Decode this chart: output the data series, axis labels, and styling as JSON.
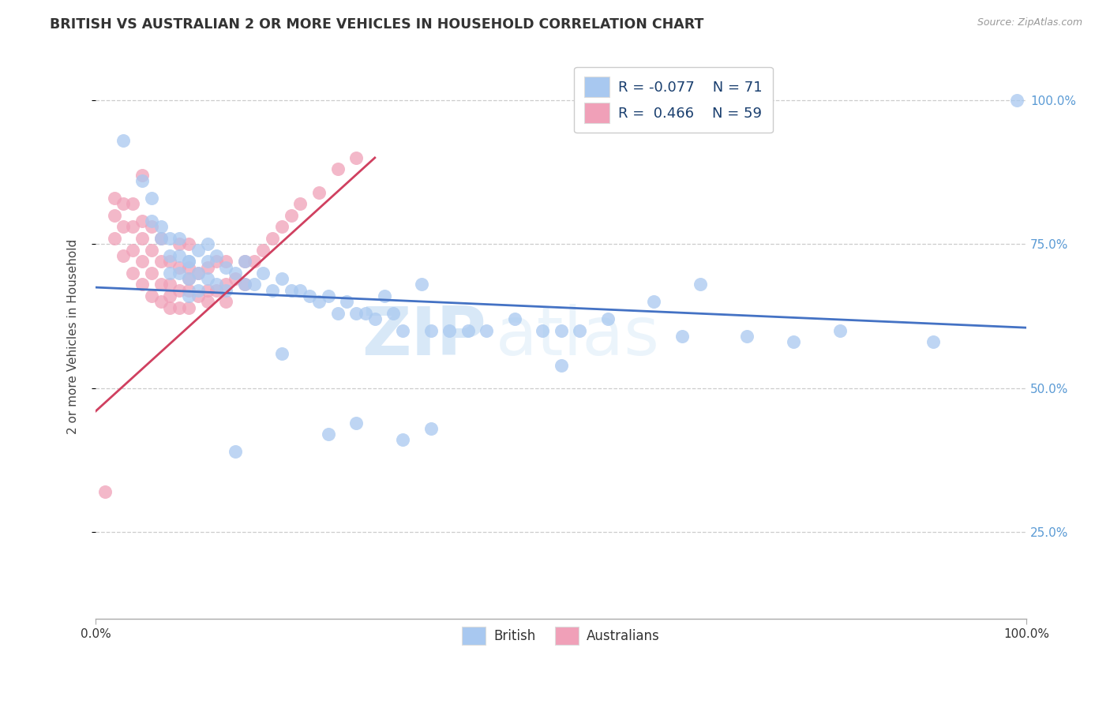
{
  "title": "BRITISH VS AUSTRALIAN 2 OR MORE VEHICLES IN HOUSEHOLD CORRELATION CHART",
  "source": "Source: ZipAtlas.com",
  "ylabel": "2 or more Vehicles in Household",
  "yticks": [
    "25.0%",
    "50.0%",
    "75.0%",
    "100.0%"
  ],
  "ytick_vals": [
    0.25,
    0.5,
    0.75,
    1.0
  ],
  "xlim": [
    0.0,
    1.0
  ],
  "ylim": [
    0.1,
    1.08
  ],
  "blue_R": -0.077,
  "blue_N": 71,
  "pink_R": 0.466,
  "pink_N": 59,
  "blue_color": "#A8C8F0",
  "pink_color": "#F0A0B8",
  "blue_line_color": "#4472C4",
  "pink_line_color": "#D04060",
  "watermark_zip": "ZIP",
  "watermark_atlas": "atlas",
  "blue_scatter_x": [
    0.03,
    0.05,
    0.06,
    0.06,
    0.07,
    0.07,
    0.08,
    0.08,
    0.08,
    0.09,
    0.09,
    0.09,
    0.1,
    0.1,
    0.1,
    0.1,
    0.11,
    0.11,
    0.11,
    0.12,
    0.12,
    0.12,
    0.13,
    0.13,
    0.14,
    0.14,
    0.15,
    0.16,
    0.16,
    0.17,
    0.18,
    0.19,
    0.2,
    0.21,
    0.22,
    0.23,
    0.24,
    0.25,
    0.26,
    0.27,
    0.28,
    0.29,
    0.3,
    0.31,
    0.32,
    0.33,
    0.35,
    0.36,
    0.38,
    0.4,
    0.42,
    0.45,
    0.48,
    0.5,
    0.52,
    0.55,
    0.6,
    0.63,
    0.65,
    0.7,
    0.75,
    0.8,
    0.9,
    0.5,
    0.36,
    0.28,
    0.2,
    0.15,
    0.25,
    0.33,
    0.99
  ],
  "blue_scatter_y": [
    0.93,
    0.86,
    0.83,
    0.79,
    0.78,
    0.76,
    0.76,
    0.73,
    0.7,
    0.76,
    0.73,
    0.7,
    0.72,
    0.69,
    0.66,
    0.72,
    0.7,
    0.67,
    0.74,
    0.69,
    0.72,
    0.75,
    0.68,
    0.73,
    0.67,
    0.71,
    0.7,
    0.68,
    0.72,
    0.68,
    0.7,
    0.67,
    0.69,
    0.67,
    0.67,
    0.66,
    0.65,
    0.66,
    0.63,
    0.65,
    0.63,
    0.63,
    0.62,
    0.66,
    0.63,
    0.6,
    0.68,
    0.6,
    0.6,
    0.6,
    0.6,
    0.62,
    0.6,
    0.6,
    0.6,
    0.62,
    0.65,
    0.59,
    0.68,
    0.59,
    0.58,
    0.6,
    0.58,
    0.54,
    0.43,
    0.44,
    0.56,
    0.39,
    0.42,
    0.41,
    1.0
  ],
  "pink_scatter_x": [
    0.01,
    0.02,
    0.02,
    0.02,
    0.03,
    0.03,
    0.03,
    0.04,
    0.04,
    0.04,
    0.04,
    0.05,
    0.05,
    0.05,
    0.05,
    0.06,
    0.06,
    0.06,
    0.06,
    0.07,
    0.07,
    0.07,
    0.07,
    0.08,
    0.08,
    0.08,
    0.08,
    0.09,
    0.09,
    0.09,
    0.09,
    0.1,
    0.1,
    0.1,
    0.1,
    0.1,
    0.11,
    0.11,
    0.12,
    0.12,
    0.12,
    0.13,
    0.13,
    0.14,
    0.14,
    0.14,
    0.15,
    0.16,
    0.16,
    0.17,
    0.18,
    0.19,
    0.2,
    0.21,
    0.22,
    0.24,
    0.26,
    0.28,
    0.05
  ],
  "pink_scatter_y": [
    0.32,
    0.76,
    0.8,
    0.83,
    0.73,
    0.78,
    0.82,
    0.7,
    0.74,
    0.78,
    0.82,
    0.68,
    0.72,
    0.76,
    0.79,
    0.66,
    0.7,
    0.74,
    0.78,
    0.65,
    0.68,
    0.72,
    0.76,
    0.64,
    0.68,
    0.72,
    0.66,
    0.64,
    0.67,
    0.71,
    0.75,
    0.64,
    0.67,
    0.71,
    0.75,
    0.69,
    0.66,
    0.7,
    0.67,
    0.71,
    0.65,
    0.67,
    0.72,
    0.68,
    0.72,
    0.65,
    0.69,
    0.72,
    0.68,
    0.72,
    0.74,
    0.76,
    0.78,
    0.8,
    0.82,
    0.84,
    0.88,
    0.9,
    0.87
  ],
  "blue_line_x0": 0.0,
  "blue_line_y0": 0.675,
  "blue_line_x1": 1.0,
  "blue_line_y1": 0.605,
  "pink_line_x0": 0.0,
  "pink_line_y0": 0.46,
  "pink_line_x1": 0.3,
  "pink_line_y1": 0.9
}
